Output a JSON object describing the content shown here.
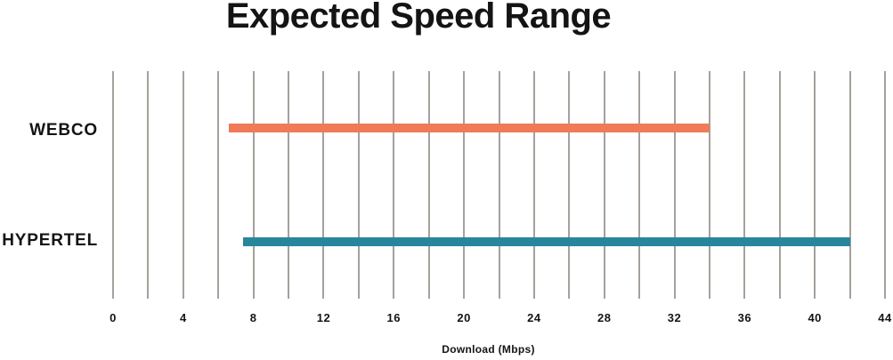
{
  "chart_data": {
    "type": "bar",
    "variant": "horizontal-range-bars",
    "title": "Expected Speed Range",
    "xlabel": "Download (Mbps)",
    "xlim": [
      0,
      44
    ],
    "xticks": [
      0,
      4,
      8,
      12,
      16,
      20,
      24,
      28,
      32,
      36,
      40,
      44
    ],
    "gridline_step": 2,
    "grid": true,
    "legend": false,
    "categories": [
      "WEBCO",
      "HYPERTEL"
    ],
    "series": [
      {
        "name": "WEBCO",
        "range_mbps": [
          6.6,
          34
        ],
        "color": "#EF7B58"
      },
      {
        "name": "HYPERTEL",
        "range_mbps": [
          7.4,
          42
        ],
        "color": "#27869B"
      }
    ]
  },
  "colors": {
    "gridline": "#A5A19B",
    "text": "#141414",
    "background": "#FFFFFF"
  }
}
